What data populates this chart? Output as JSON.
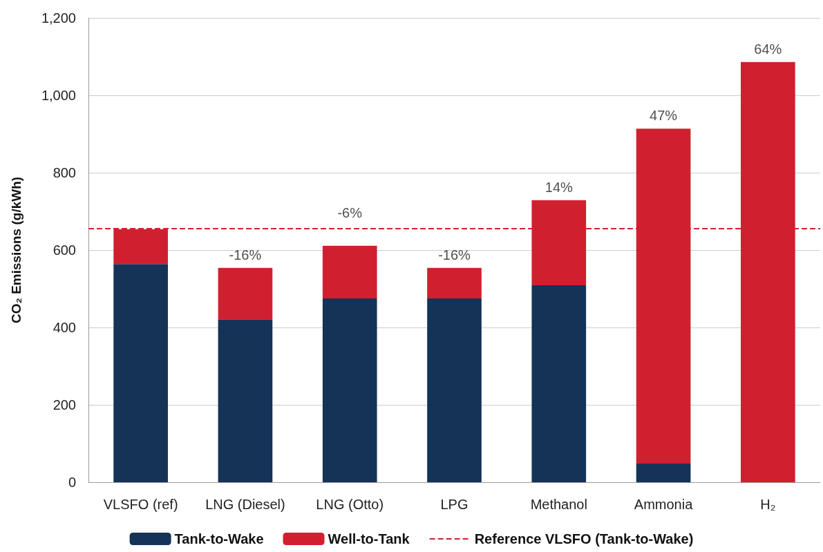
{
  "chart_data": {
    "type": "bar",
    "stacked": true,
    "ylabel": "CO₂ Emissions (g/kWh)",
    "categories": [
      "VLSFO (ref)",
      "LNG (Diesel)",
      "LNG (Otto)",
      "LPG",
      "Methanol",
      "Ammonia",
      "H₂"
    ],
    "series": [
      {
        "name": "Tank-to-Wake",
        "color": "#153257",
        "values": [
          564,
          421,
          475,
          475,
          509,
          48,
          0
        ]
      },
      {
        "name": "Well-to-Tank",
        "color": "#d0202f",
        "values": [
          90,
          133,
          136,
          79,
          220,
          866,
          1086
        ]
      }
    ],
    "annotations": [
      {
        "text": "-16%",
        "x": "LNG (Diesel)",
        "y": 554
      },
      {
        "text": "-6%",
        "x": "LNG (Otto)",
        "y": 611
      },
      {
        "text": "-16%",
        "x": "LPG",
        "y": 554
      },
      {
        "text": "14%",
        "x": "Methanol",
        "y": 729
      },
      {
        "text": "47%",
        "x": "Ammonia",
        "y": 914
      },
      {
        "text": "64%",
        "x": "H₂",
        "y": 1086
      }
    ],
    "ref_lines": [
      {
        "axis": "y",
        "value": 655,
        "label": "Reference VLSFO (Tank-to-Wake)",
        "color": "#d0202f",
        "line_style": "dashed"
      }
    ],
    "ylim": [
      0,
      1200
    ],
    "yticks": [
      0,
      200,
      400,
      600,
      800,
      {
        "value": 1000,
        "label": "1,000"
      },
      {
        "value": 1200,
        "label": "1,200"
      }
    ],
    "grid": "y",
    "legend": "bottom"
  }
}
